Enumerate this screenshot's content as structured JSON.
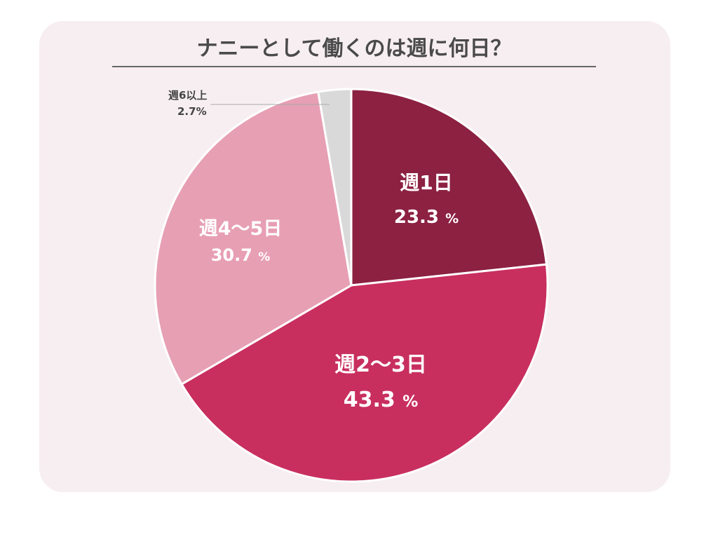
{
  "chart_data": {
    "type": "pie",
    "title": "ナニーとして働くのは週に何日？",
    "unit": "%",
    "slices": [
      {
        "label": "週1日",
        "value": 23.3,
        "display": "23.3",
        "color": "#8c2142"
      },
      {
        "label": "週2〜3日",
        "value": 43.3,
        "display": "43.3",
        "color": "#c82f5f"
      },
      {
        "label": "週4〜5日",
        "value": 30.7,
        "display": "30.7",
        "color": "#e79fb4"
      },
      {
        "label": "週6以上",
        "value": 2.7,
        "display": "2.7%",
        "color": "#d9d9d9"
      }
    ],
    "start": "12 o'clock",
    "direction": "clockwise",
    "legend": "none"
  }
}
